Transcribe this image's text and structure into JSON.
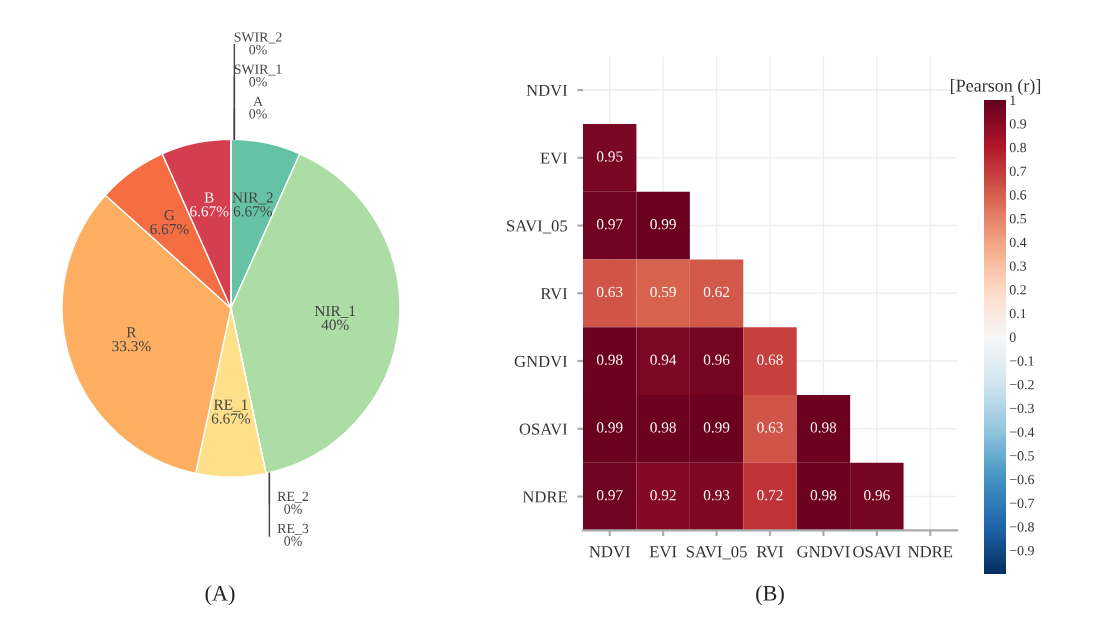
{
  "chart_data": [
    {
      "type": "pie",
      "categories": [
        "NIR_2",
        "NIR_1",
        "RE_2",
        "RE_3",
        "RE_1",
        "R",
        "G",
        "B",
        "A",
        "SWIR_1",
        "SWIR_2"
      ],
      "values": [
        6.67,
        40,
        0,
        0,
        6.67,
        33.3,
        6.67,
        6.67,
        0,
        0,
        0
      ],
      "value_labels": [
        "6.67%",
        "40%",
        "0%",
        "0%",
        "6.67%",
        "33.3%",
        "6.67%",
        "6.67%",
        "0%",
        "0%",
        "0%"
      ],
      "colors": [
        "#66c2a5",
        "#abdda4",
        "#e6f598",
        "#ffffbf",
        "#fee08b",
        "#fdae61",
        "#f46d43",
        "#d53e4f",
        "#9e0142",
        "#5e4fa2",
        "#3288bd"
      ],
      "annotations": [
        "(A)"
      ]
    },
    {
      "type": "heatmap",
      "categories": [
        "NDVI",
        "EVI",
        "SAVI_05",
        "RVI",
        "GNDVI",
        "OSAVI",
        "NDRE"
      ],
      "y_categories": [
        "NDVI",
        "EVI",
        "SAVI_05",
        "RVI",
        "GNDVI",
        "OSAVI",
        "NDRE"
      ],
      "cells": [
        [
          null,
          null,
          null,
          null,
          null,
          null,
          null
        ],
        [
          0.95,
          null,
          null,
          null,
          null,
          null,
          null
        ],
        [
          0.97,
          0.99,
          null,
          null,
          null,
          null,
          null
        ],
        [
          0.63,
          0.59,
          0.62,
          null,
          null,
          null,
          null
        ],
        [
          0.98,
          0.94,
          0.96,
          0.68,
          null,
          null,
          null
        ],
        [
          0.99,
          0.98,
          0.99,
          0.63,
          0.98,
          null,
          null
        ],
        [
          0.97,
          0.92,
          0.93,
          0.72,
          0.98,
          0.96,
          null
        ]
      ],
      "data_labels": true,
      "grid": true,
      "clim": [
        -1,
        1
      ],
      "clabel": "[Pearson (r)]",
      "cticks": [
        1,
        0.9,
        0.8,
        0.7,
        0.6,
        0.5,
        0.4,
        0.3,
        0.2,
        0.1,
        0,
        {
          "value": -0.1,
          "label": "−0.1"
        },
        {
          "value": -0.2,
          "label": "−0.2"
        },
        {
          "value": -0.3,
          "label": "−0.3"
        },
        {
          "value": -0.4,
          "label": "−0.4"
        },
        {
          "value": -0.5,
          "label": "−0.5"
        },
        {
          "value": -0.6,
          "label": "−0.6"
        },
        {
          "value": -0.7,
          "label": "−0.7"
        },
        {
          "value": -0.8,
          "label": "−0.8"
        },
        {
          "value": -0.9,
          "label": "−0.9"
        }
      ],
      "annotations": [
        "(B)"
      ]
    }
  ]
}
